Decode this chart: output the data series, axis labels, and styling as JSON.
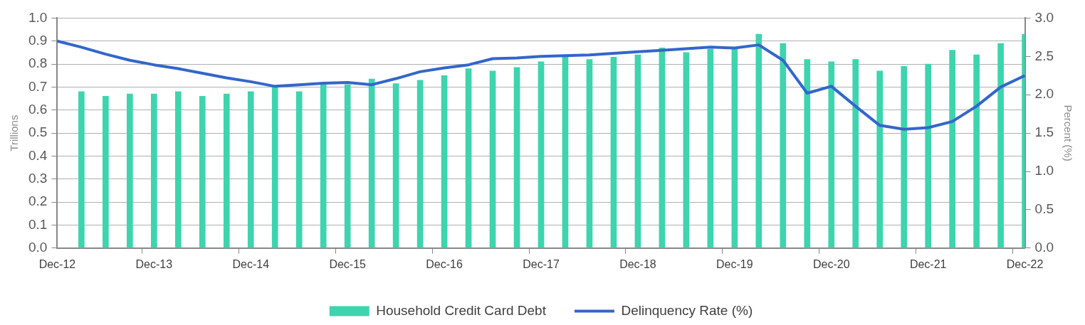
{
  "chart_data": {
    "type": "bar",
    "categories": [
      "Dec-12",
      null,
      null,
      null,
      "Dec-13",
      null,
      null,
      null,
      "Dec-14",
      null,
      null,
      null,
      "Dec-15",
      null,
      null,
      null,
      "Dec-16",
      null,
      null,
      null,
      "Dec-17",
      null,
      null,
      null,
      "Dec-18",
      null,
      null,
      null,
      "Dec-19",
      null,
      null,
      null,
      "Dec-20",
      null,
      null,
      null,
      "Dec-21",
      null,
      null,
      null,
      "Dec-22"
    ],
    "series": [
      {
        "name": "Household Credit Card Debt",
        "color": "#3dd4ae",
        "values": [
          null,
          0.68,
          0.66,
          0.67,
          0.67,
          0.68,
          0.66,
          0.67,
          0.68,
          0.7,
          0.68,
          0.71,
          0.71,
          0.735,
          0.715,
          0.73,
          0.75,
          0.78,
          0.77,
          0.785,
          0.81,
          0.83,
          0.82,
          0.83,
          0.84,
          0.87,
          0.85,
          0.865,
          0.87,
          0.93,
          0.89,
          0.82,
          0.81,
          0.82,
          0.77,
          0.79,
          0.8,
          0.86,
          0.84,
          0.89,
          0.93
        ]
      },
      {
        "type": "line",
        "name": "Delinquency Rate (%)",
        "color": "#3366cc",
        "axis": "y2",
        "values": [
          2.7,
          2.62,
          2.53,
          2.45,
          2.39,
          2.34,
          2.28,
          2.22,
          2.17,
          2.11,
          2.13,
          2.15,
          2.16,
          2.13,
          2.21,
          2.3,
          2.35,
          2.39,
          2.47,
          2.48,
          2.5,
          2.51,
          2.52,
          2.54,
          2.56,
          2.58,
          2.6,
          2.62,
          2.61,
          2.65,
          2.45,
          2.02,
          2.11,
          1.85,
          1.6,
          1.55,
          1.57,
          1.65,
          1.85,
          2.1,
          2.25
        ]
      }
    ],
    "ylabel": "Trillions",
    "y2label": "Percent (%)",
    "ylim": [
      0,
      1
    ],
    "yticks": [
      {
        "value": 0,
        "label": "0.0"
      },
      0.1,
      0.2,
      0.3,
      0.4,
      0.5,
      0.6,
      0.7,
      0.8,
      0.9,
      {
        "value": 1,
        "label": "1.0"
      }
    ],
    "y2lim": [
      0,
      3
    ],
    "y2ticks": [
      {
        "value": 0,
        "label": "0.0"
      },
      0.5,
      {
        "value": 1,
        "label": "1.0"
      },
      1.5,
      {
        "value": 2,
        "label": "2.0"
      },
      2.5,
      {
        "value": 3,
        "label": "3.0"
      }
    ],
    "grid": "y",
    "legend": "bottom"
  }
}
